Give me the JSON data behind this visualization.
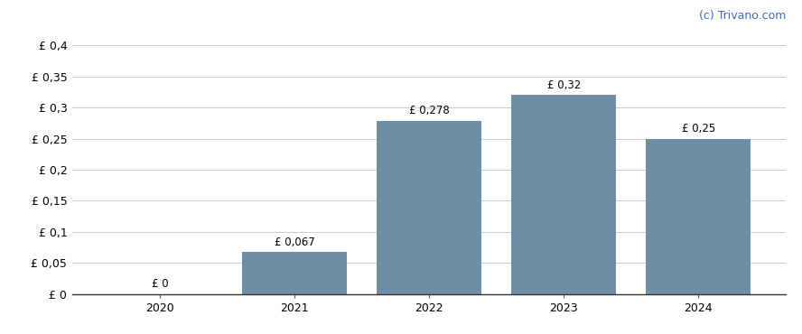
{
  "years": [
    2020,
    2021,
    2022,
    2023,
    2024
  ],
  "values": [
    0,
    0.067,
    0.278,
    0.32,
    0.25
  ],
  "bar_labels": [
    "£ 0",
    "£ 0,067",
    "£ 0,278",
    "£ 0,32",
    "£ 0,25"
  ],
  "bar_color": "#6e8fa3",
  "background_color": "#ffffff",
  "yticks": [
    0,
    0.05,
    0.1,
    0.15,
    0.2,
    0.25,
    0.3,
    0.35,
    0.4
  ],
  "ytick_labels": [
    "£ 0",
    "£ 0,05",
    "£ 0,1",
    "£ 0,15",
    "£ 0,2",
    "£ 0,25",
    "£ 0,3",
    "£ 0,35",
    "£ 0,4"
  ],
  "ylim": [
    0,
    0.43
  ],
  "watermark": "(c) Trivano.com",
  "watermark_color": "#4466bb",
  "bar_width": 0.78,
  "label_fontsize": 8.5,
  "tick_fontsize": 9,
  "watermark_fontsize": 9,
  "grid_color": "#cccccc",
  "xlim_left": 2019.35,
  "xlim_right": 2024.65
}
